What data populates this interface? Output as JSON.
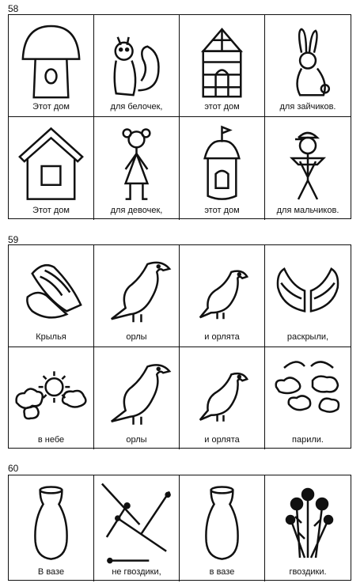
{
  "ex58": {
    "number": "58",
    "captions": [
      "Этот дом",
      "для белочек,",
      "этот дом",
      "для зайчиков.",
      "Этот дом",
      "для девочек,",
      "этот дом",
      "для мальчиков."
    ],
    "icons": [
      "mushroom-house",
      "squirrel",
      "tower-house",
      "hare",
      "birdhouse",
      "girl",
      "round-tower-house",
      "boy"
    ]
  },
  "ex59": {
    "number": "59",
    "captions": [
      "Крылья",
      "орлы",
      "и орлята",
      "раскрыли,",
      "в небе",
      "орлы",
      "и орлята",
      "парили."
    ],
    "icons": [
      "wings",
      "eagle",
      "eaglet",
      "open-wings",
      "sun-clouds",
      "eagle",
      "eaglet",
      "clouds"
    ]
  },
  "ex60": {
    "number": "60",
    "captions": [
      "В вазе",
      "не гвоздики,",
      "в вазе",
      "гвоздики."
    ],
    "icons": [
      "vase",
      "nails",
      "vase",
      "carnations"
    ]
  }
}
